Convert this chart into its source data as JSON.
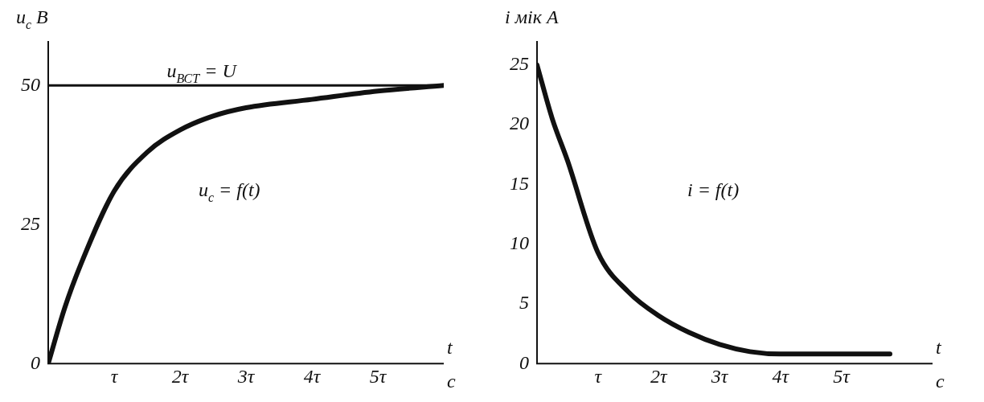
{
  "chart_data": [
    {
      "type": "line",
      "ylabel": "u$_{c}$ B",
      "xlabel": "t",
      "annotations": [
        "c",
        "u$_{c}$ = f(t)"
      ],
      "xlim": [
        0,
        6
      ],
      "xticks": [
        {
          "value": 1,
          "label": "τ"
        },
        {
          "value": 2,
          "label": "2τ"
        },
        {
          "value": 3,
          "label": "3τ"
        },
        {
          "value": 4,
          "label": "4τ"
        },
        {
          "value": 5,
          "label": "5τ"
        }
      ],
      "ylim": [
        0,
        58
      ],
      "yticks": [
        0,
        25,
        50
      ],
      "grid": false,
      "legend": false,
      "marker": "none",
      "line_style": "solid",
      "ref_lines": [
        {
          "axis": "y",
          "value": 50,
          "label": "u$_{ВСТ}$ = U",
          "color": "#111111"
        }
      ],
      "series": [
        {
          "color": "#111111",
          "x": [
            0,
            0.25,
            0.5,
            1,
            1.5,
            2,
            2.5,
            3,
            4,
            5,
            6
          ],
          "values": [
            0,
            10,
            18,
            31,
            38,
            42,
            44.5,
            46,
            47.5,
            49,
            50
          ]
        }
      ]
    },
    {
      "type": "line",
      "ylabel": "i мік А",
      "xlabel": "t",
      "annotations": [
        "c",
        "i = f(t)"
      ],
      "xlim": [
        0,
        6.5
      ],
      "xticks": [
        {
          "value": 1,
          "label": "τ"
        },
        {
          "value": 2,
          "label": "2τ"
        },
        {
          "value": 3,
          "label": "3τ"
        },
        {
          "value": 4,
          "label": "4τ"
        },
        {
          "value": 5,
          "label": "5τ"
        }
      ],
      "ylim": [
        0,
        27
      ],
      "yticks": [
        0,
        5,
        10,
        15,
        20,
        25
      ],
      "grid": false,
      "legend": false,
      "marker": "none",
      "line_style": "solid",
      "series": [
        {
          "color": "#111111",
          "x": [
            0,
            0.25,
            0.5,
            1,
            1.5,
            2,
            2.5,
            3,
            3.5,
            4,
            5,
            5.8
          ],
          "values": [
            25,
            20.5,
            17,
            9.3,
            6,
            4,
            2.6,
            1.6,
            1,
            0.8,
            0.8,
            0.8
          ]
        }
      ]
    }
  ]
}
